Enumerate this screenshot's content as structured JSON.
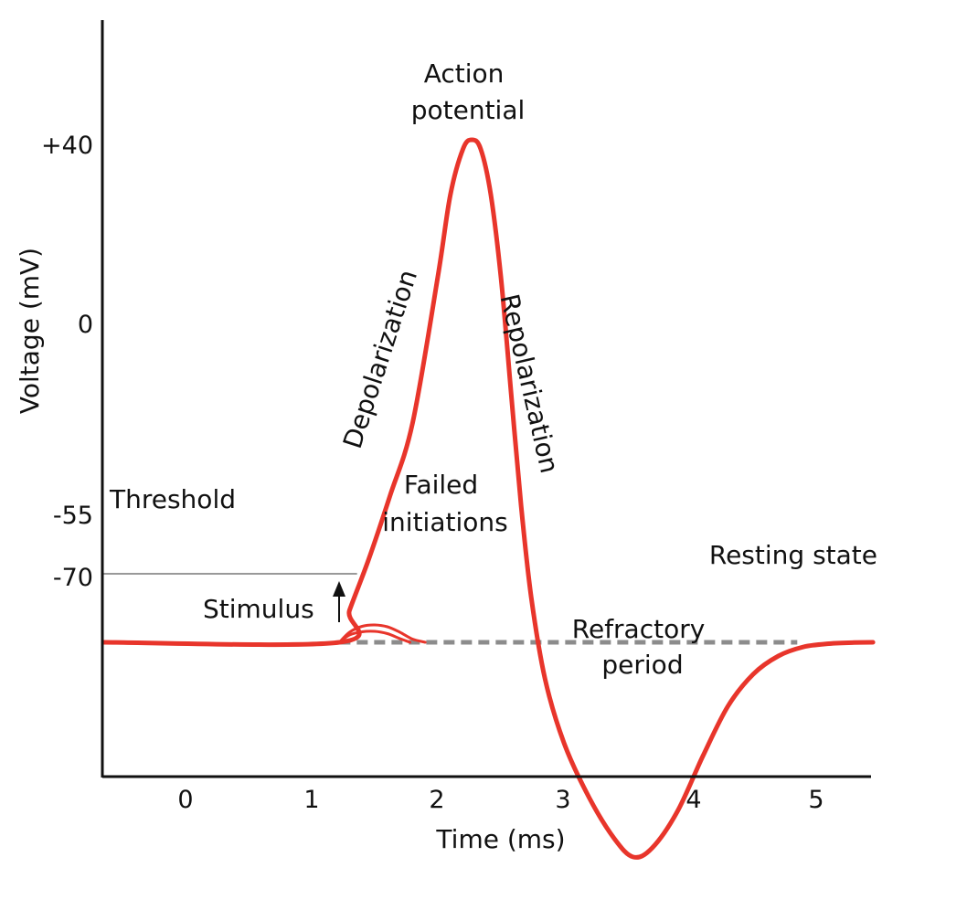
{
  "chart_data": {
    "type": "line",
    "title": "",
    "xlabel": "Time (ms)",
    "ylabel": "Voltage (mV)",
    "x_ticks": [
      "0",
      "1",
      "2",
      "3",
      "4",
      "5"
    ],
    "y_ticks": [
      "+40",
      "0",
      "-55",
      "-70"
    ],
    "xlim": [
      -0.65,
      5.45
    ],
    "grid": false,
    "legend": "none",
    "colors": {
      "curve": "#e8352b",
      "threshold": "#999999",
      "resting": "#8c8c8c",
      "axis": "#111111"
    },
    "threshold_mV": -55,
    "resting_mV": -70,
    "series": [
      {
        "x": [
          -0.65,
          1.22,
          1.3,
          1.45,
          1.62,
          1.8,
          2.0,
          2.1,
          2.2,
          2.27,
          2.34,
          2.42,
          2.5,
          2.58,
          2.66,
          2.74,
          2.85,
          3.0,
          3.2,
          3.4,
          3.55,
          3.7,
          3.9,
          4.1,
          4.3,
          4.5,
          4.7,
          4.9,
          5.1,
          5.3,
          5.45
        ],
        "y": [
          -70,
          -70,
          -63,
          -52,
          -38,
          -22,
          10,
          28,
          38,
          40,
          38,
          28,
          10,
          -15,
          -40,
          -60,
          -78,
          -92,
          -104,
          -113,
          -117,
          -115,
          -107,
          -95,
          -84,
          -77,
          -73,
          -71,
          -70.3,
          -70.05,
          -70
        ]
      },
      {
        "x": [
          1.22,
          1.3,
          1.4,
          1.5,
          1.6,
          1.7,
          1.8,
          1.9
        ],
        "y": [
          -70,
          -67.8,
          -66.5,
          -66.2,
          -66.6,
          -67.8,
          -69.3,
          -70
        ]
      },
      {
        "x": [
          1.22,
          1.3,
          1.4,
          1.5,
          1.6,
          1.7,
          1.78
        ],
        "y": [
          -70,
          -68.4,
          -67.7,
          -67.6,
          -68.1,
          -69.2,
          -70
        ]
      }
    ],
    "annotations": {
      "action_potential": [
        "Action",
        "potential"
      ],
      "depolarization": "Depolarization",
      "repolarization": "Repolarization",
      "threshold": "Threshold",
      "failed_initiations": [
        "Failed",
        "initiations"
      ],
      "resting_state": "Resting state",
      "stimulus": "Stimulus",
      "refractory_period": [
        "Refractory",
        "period"
      ]
    }
  }
}
